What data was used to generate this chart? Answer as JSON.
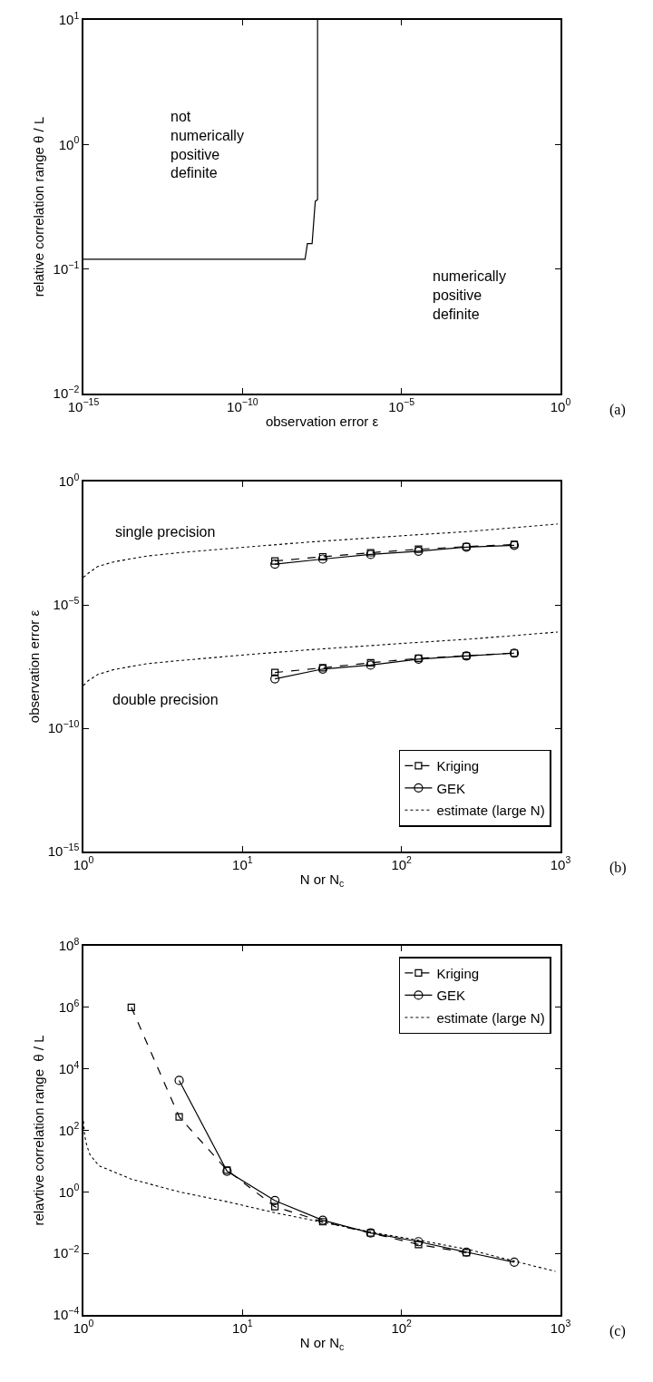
{
  "chart_data": [
    {
      "type": "line",
      "log": "xy",
      "xlabel": "observation error ε",
      "ylabel": "relative correlation range θ / L",
      "xlim": [
        1e-15,
        1
      ],
      "ylim": [
        0.01,
        10
      ],
      "xticks": [
        {
          "value": 1e-15,
          "label": "10$^{−15}$"
        },
        {
          "value": 1e-10,
          "label": "10$^{−10}$"
        },
        {
          "value": 1e-05,
          "label": "10$^{−5}$"
        },
        {
          "value": 1,
          "label": "10$^{0}$"
        }
      ],
      "yticks": [
        {
          "value": 0.01,
          "label": "10$^{−2}$"
        },
        {
          "value": 0.1,
          "label": "10$^{−1}$"
        },
        {
          "value": 1,
          "label": "10$^{0}$"
        },
        {
          "value": 10,
          "label": "10$^{1}$"
        }
      ],
      "series": [
        {
          "color": "#000000",
          "line_style": "solid",
          "marker": "none",
          "x": [
            1e-15,
            9.3e-09,
            1.1e-08,
            1.55e-08,
            1.86e-08,
            1.95e-08,
            2.3e-08,
            2.3e-08
          ],
          "values": [
            0.12,
            0.12,
            0.16,
            0.16,
            0.3,
            0.35,
            0.36,
            10
          ]
        }
      ],
      "annotations": [
        "not\nnumerically\npositive\ndefinite",
        "numerically\npositive\ndefinite",
        "(a)"
      ]
    },
    {
      "type": "line",
      "log": "xy",
      "xlabel": "N or N$_{c}$",
      "ylabel": "observation error ε",
      "legend": "bottom right",
      "xlim": [
        1,
        1000
      ],
      "ylim": [
        1e-15,
        1
      ],
      "xticks": [
        {
          "value": 1,
          "label": "10$^{0}$"
        },
        {
          "value": 10,
          "label": "10$^{1}$"
        },
        {
          "value": 100,
          "label": "10$^{2}$"
        },
        {
          "value": 1000,
          "label": "10$^{3}$"
        }
      ],
      "yticks": [
        {
          "value": 1e-15,
          "label": "10$^{−15}$"
        },
        {
          "value": 1e-10,
          "label": "10$^{−10}$"
        },
        {
          "value": 1e-05,
          "label": "10$^{−5}$"
        },
        {
          "value": 1,
          "label": "10$^{0}$"
        }
      ],
      "series": [
        {
          "name": "Kriging",
          "color": "#000000",
          "line_style": "dashed",
          "marker": "square",
          "x": [
            16,
            32,
            64,
            128,
            256,
            512
          ],
          "values": [
            0.0006,
            0.00089,
            0.0013,
            0.0018,
            0.0023,
            0.0028
          ]
        },
        {
          "name": "Kriging",
          "color": "#000000",
          "line_style": "dashed",
          "marker": "square",
          "x": [
            16,
            32,
            64,
            128,
            256,
            512
          ],
          "values": [
            1.8e-08,
            2.8e-08,
            4.5e-08,
            6.8e-08,
            8.7e-08,
            1.1e-07
          ]
        },
        {
          "name": "GEK",
          "color": "#000000",
          "line_style": "solid",
          "marker": "circle",
          "x": [
            16,
            32,
            64,
            128,
            256,
            512
          ],
          "values": [
            0.00045,
            0.00072,
            0.0011,
            0.0015,
            0.0022,
            0.0026
          ]
        },
        {
          "name": "GEK",
          "color": "#000000",
          "line_style": "solid",
          "marker": "circle",
          "x": [
            16,
            32,
            64,
            128,
            256,
            512
          ],
          "values": [
            1e-08,
            2.5e-08,
            3.6e-08,
            6.3e-08,
            8.5e-08,
            1.1e-07
          ]
        },
        {
          "name": "estimate (large N)",
          "color": "#000000",
          "line_style": "dotted",
          "marker": "none",
          "x": [
            1,
            1.07,
            1.23,
            1.56,
            2.5,
            4,
            10.6,
            26,
            107,
            270,
            960
          ],
          "values": [
            0.00013,
            0.00019,
            0.00036,
            0.00056,
            0.00095,
            0.0013,
            0.0022,
            0.0035,
            0.0065,
            0.0095,
            0.019
          ]
        },
        {
          "name": "estimate (large N)",
          "color": "#000000",
          "line_style": "dotted",
          "marker": "none",
          "x": [
            1,
            1.07,
            1.23,
            1.56,
            2.5,
            4,
            10.6,
            26,
            107,
            270,
            960
          ],
          "values": [
            5.4e-09,
            8.3e-09,
            1.5e-08,
            2.4e-08,
            4.1e-08,
            5.5e-08,
            9.5e-08,
            1.5e-07,
            2.8e-07,
            4.1e-07,
            7.9e-07
          ]
        }
      ],
      "annotations": [
        "single precision",
        "double precision",
        "(b)"
      ]
    },
    {
      "type": "line",
      "log": "xy",
      "xlabel": "N or N$_{c}$",
      "ylabel": "relavtive correlation range  θ / L",
      "legend": "top right",
      "xlim": [
        1,
        1000
      ],
      "ylim": [
        0.0001,
        100000000.0
      ],
      "xticks": [
        {
          "value": 1,
          "label": "10$^{0}$"
        },
        {
          "value": 10,
          "label": "10$^{1}$"
        },
        {
          "value": 100,
          "label": "10$^{2}$"
        },
        {
          "value": 1000,
          "label": "10$^{3}$"
        }
      ],
      "yticks": [
        {
          "value": 0.0001,
          "label": "10$^{−4}$"
        },
        {
          "value": 0.01,
          "label": "10$^{−2}$"
        },
        {
          "value": 1,
          "label": "10$^{0}$"
        },
        {
          "value": 100,
          "label": "10$^{2}$"
        },
        {
          "value": 10000.0,
          "label": "10$^{4}$"
        },
        {
          "value": 1000000.0,
          "label": "10$^{6}$"
        },
        {
          "value": 100000000.0,
          "label": "10$^{8}$"
        }
      ],
      "series": [
        {
          "name": "Kriging",
          "color": "#000000",
          "line_style": "dashed",
          "marker": "square",
          "x": [
            2,
            4,
            8,
            16,
            32,
            64,
            128,
            256
          ],
          "values": [
            1000000.0,
            275,
            5.1,
            0.33,
            0.107,
            0.046,
            0.0195,
            0.0105
          ]
        },
        {
          "name": "GEK",
          "color": "#000000",
          "line_style": "solid",
          "marker": "circle",
          "x": [
            4,
            8,
            16,
            32,
            64,
            128,
            256,
            512
          ],
          "values": [
            4200,
            4.7,
            0.52,
            0.12,
            0.046,
            0.024,
            0.011,
            0.0052
          ]
        },
        {
          "name": "estimate (large N)",
          "color": "#000000",
          "line_style": "dotted",
          "marker": "none",
          "x": [
            1.0,
            1.02,
            1.05,
            1.1,
            1.25,
            2,
            4,
            8,
            16,
            33,
            66,
            133,
            270,
            520,
            930
          ],
          "values": [
            200,
            63,
            32,
            16,
            7.1,
            2.6,
            1.0,
            0.48,
            0.21,
            0.1,
            0.048,
            0.026,
            0.013,
            0.0055,
            0.0026
          ]
        }
      ],
      "annotations": [
        "(c)"
      ]
    }
  ]
}
